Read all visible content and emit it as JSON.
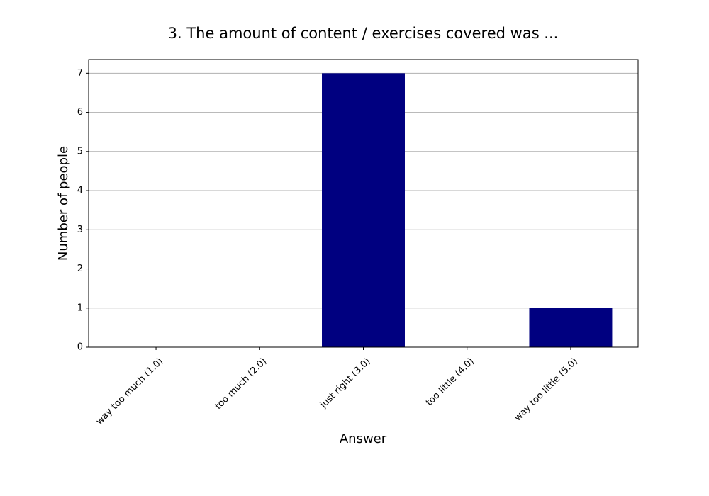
{
  "chart_data": {
    "type": "bar",
    "title": "3. The amount of content / exercises covered was ...",
    "xlabel": "Answer",
    "ylabel": "Number of people",
    "categories": [
      "way too much (1.0)",
      "too much (2.0)",
      "just right (3.0)",
      "too little (4.0)",
      "way too little (5.0)"
    ],
    "values": [
      0,
      0,
      7,
      0,
      1
    ],
    "color": "#000080",
    "ylim": [
      0,
      7.35
    ],
    "yticks": [
      0,
      1,
      2,
      3,
      4,
      5,
      6,
      7
    ],
    "grid": true
  }
}
